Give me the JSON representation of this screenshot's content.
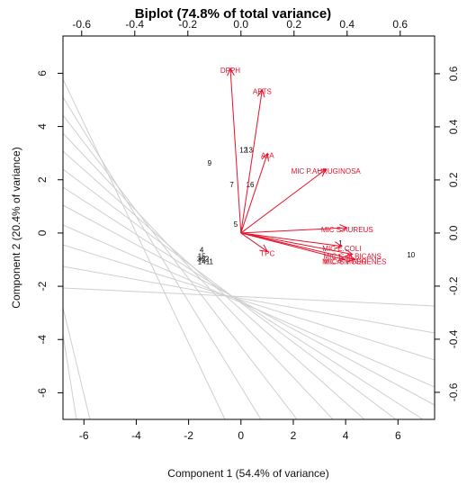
{
  "chart_data": {
    "type": "scatter",
    "subtype": "biplot",
    "title": "Biplot (74.8% of total variance)",
    "xlabel": "Component 1 (54.4% of variance)",
    "ylabel": "Component 2 (20.4% of variance)",
    "xlim": [
      -6.8,
      7.4
    ],
    "ylim": [
      -7.0,
      7.4
    ],
    "xticks": [
      "-6",
      "-4",
      "-2",
      "0",
      "2",
      "4",
      "6"
    ],
    "yticks": [
      "-6",
      "-4",
      "-2",
      "0",
      "2",
      "4",
      "6"
    ],
    "loading_ticks_top": [
      "-0.6",
      "-0.4",
      "-0.2",
      "0.0",
      "0.2",
      "0.4",
      "0.6"
    ],
    "loading_ticks_right": [
      "-0.6",
      "-0.4",
      "-0.2",
      "0.0",
      "0.2",
      "0.4",
      "0.6"
    ],
    "loading_lim": [
      -0.7,
      0.7
    ],
    "colors": {
      "loadings": "#e8102a",
      "observations": "#000000",
      "contours": "#cfcfcf",
      "frame": "#000000"
    },
    "contour_lines": true,
    "observations": [
      {
        "label": "1",
        "x": 3.8,
        "y": -0.4
      },
      {
        "label": "4",
        "x": -1.5,
        "y": -0.65
      },
      {
        "label": "5",
        "x": -0.2,
        "y": 0.3
      },
      {
        "label": "7",
        "x": -0.35,
        "y": 1.8
      },
      {
        "label": "9",
        "x": -1.2,
        "y": 2.6
      },
      {
        "label": "10",
        "x": 6.5,
        "y": -0.85
      },
      {
        "label": "16",
        "x": 0.35,
        "y": 1.8
      },
      {
        "label": "12",
        "x": 0.1,
        "y": 3.1
      },
      {
        "label": "13",
        "x": 0.3,
        "y": 3.1
      },
      {
        "label": "15",
        "x": -1.5,
        "y": -0.9
      },
      {
        "label": "3",
        "x": -1.6,
        "y": -1.0
      },
      {
        "label": "2",
        "x": -1.3,
        "y": -1.0
      },
      {
        "label": "6",
        "x": -1.45,
        "y": -1.0
      },
      {
        "label": "14",
        "x": -1.5,
        "y": -1.1
      },
      {
        "label": "11",
        "x": -1.2,
        "y": -1.1
      }
    ],
    "loadings": [
      {
        "label": "DPPH",
        "x": -0.04,
        "y": 0.62
      },
      {
        "label": "ABTS",
        "x": 0.08,
        "y": 0.54
      },
      {
        "label": "AzA",
        "x": 0.1,
        "y": 0.3
      },
      {
        "label": "MIC P.AURUGINOSA",
        "x": 0.32,
        "y": 0.24
      },
      {
        "label": "MIC S.AUREUS",
        "x": 0.4,
        "y": 0.02
      },
      {
        "label": "TPC",
        "x": 0.1,
        "y": -0.07
      },
      {
        "label": "MIC C.ALBICANS",
        "x": 0.42,
        "y": -0.08
      },
      {
        "label": "MIC E.COLI",
        "x": 0.38,
        "y": -0.05
      },
      {
        "label": "MIC A.NIGER",
        "x": 0.39,
        "y": -0.1
      },
      {
        "label": "MIC S.PYOGENES",
        "x": 0.43,
        "y": -0.1
      }
    ]
  }
}
